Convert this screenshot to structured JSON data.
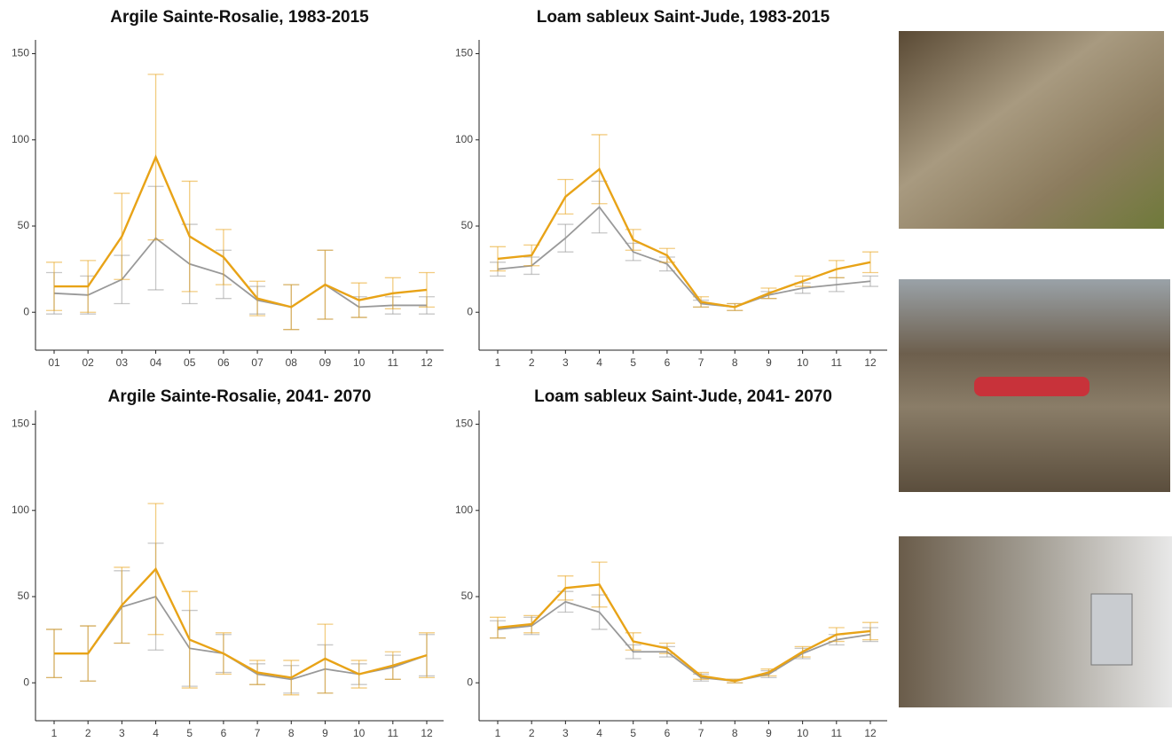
{
  "chart_data": [
    {
      "type": "line",
      "title": "Argile Sainte-Rosalie, 1983-2015",
      "categories": [
        "01",
        "02",
        "03",
        "04",
        "05",
        "06",
        "07",
        "08",
        "09",
        "10",
        "11",
        "12"
      ],
      "ylim": [
        -22,
        158
      ],
      "yticks": [
        0,
        50,
        100,
        150
      ],
      "series": [
        {
          "color": "#999999",
          "values": [
            11,
            10,
            19,
            43,
            28,
            22,
            7,
            3,
            16,
            3,
            4,
            4
          ],
          "errors": [
            12,
            11,
            14,
            30,
            23,
            14,
            8,
            13,
            20,
            6,
            5,
            5
          ]
        },
        {
          "color": "#e8a317",
          "values": [
            15,
            15,
            44,
            90,
            44,
            32,
            8,
            3,
            16,
            7,
            11,
            13
          ],
          "errors": [
            14,
            15,
            25,
            48,
            32,
            16,
            10,
            13,
            20,
            10,
            9,
            10
          ]
        }
      ]
    },
    {
      "type": "line",
      "title": "Loam sableux Saint-Jude, 1983-2015",
      "categories": [
        "1",
        "2",
        "3",
        "4",
        "5",
        "6",
        "7",
        "8",
        "9",
        "10",
        "11",
        "12"
      ],
      "ylim": [
        -22,
        158
      ],
      "yticks": [
        0,
        50,
        100,
        150
      ],
      "series": [
        {
          "color": "#999999",
          "values": [
            25,
            27,
            43,
            61,
            35,
            28,
            5,
            3,
            10,
            14,
            16,
            18
          ],
          "errors": [
            4,
            5,
            8,
            15,
            5,
            4,
            2,
            2,
            2,
            3,
            4,
            3
          ]
        },
        {
          "color": "#e8a317",
          "values": [
            31,
            33,
            67,
            83,
            42,
            33,
            6,
            3,
            11,
            18,
            25,
            29
          ],
          "errors": [
            7,
            6,
            10,
            20,
            6,
            4,
            3,
            2,
            3,
            3,
            5,
            6
          ]
        }
      ]
    },
    {
      "type": "line",
      "title": "Argile Sainte-Rosalie, 2041- 2070",
      "categories": [
        "1",
        "2",
        "3",
        "4",
        "5",
        "6",
        "7",
        "8",
        "9",
        "10",
        "11",
        "12"
      ],
      "ylim": [
        -22,
        158
      ],
      "yticks": [
        0,
        50,
        100,
        150
      ],
      "series": [
        {
          "color": "#999999",
          "values": [
            17,
            17,
            44,
            50,
            20,
            17,
            5,
            2,
            8,
            5,
            9,
            16
          ],
          "errors": [
            14,
            16,
            21,
            31,
            22,
            11,
            6,
            8,
            14,
            6,
            7,
            12
          ]
        },
        {
          "color": "#e8a317",
          "values": [
            17,
            17,
            45,
            66,
            25,
            17,
            6,
            3,
            14,
            5,
            10,
            16
          ],
          "errors": [
            14,
            16,
            22,
            38,
            28,
            12,
            7,
            10,
            20,
            8,
            8,
            13
          ]
        }
      ]
    },
    {
      "type": "line",
      "title": "Loam sableux Saint-Jude, 2041- 2070",
      "categories": [
        "1",
        "2",
        "3",
        "4",
        "5",
        "6",
        "7",
        "8",
        "9",
        "10",
        "11",
        "12"
      ],
      "ylim": [
        -22,
        158
      ],
      "yticks": [
        0,
        50,
        100,
        150
      ],
      "series": [
        {
          "color": "#999999",
          "values": [
            31,
            33,
            47,
            41,
            18,
            18,
            3,
            1,
            5,
            17,
            25,
            28
          ],
          "errors": [
            5,
            5,
            6,
            10,
            4,
            3,
            2,
            1,
            2,
            3,
            3,
            4
          ]
        },
        {
          "color": "#e8a317",
          "values": [
            32,
            34,
            55,
            57,
            24,
            20,
            4,
            1,
            6,
            18,
            28,
            30
          ],
          "errors": [
            6,
            5,
            7,
            13,
            5,
            3,
            2,
            1,
            2,
            3,
            4,
            5
          ]
        }
      ]
    }
  ]
}
